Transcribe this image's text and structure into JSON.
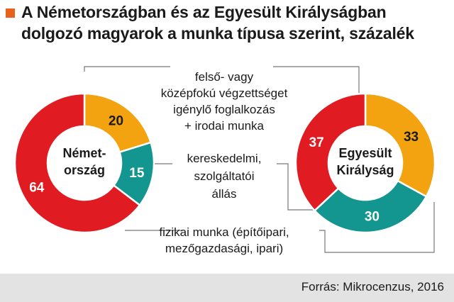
{
  "title_lines": [
    "A Németországban és az Egyesült Királyságban",
    "dolgozó magyarok a munka típusa szerint, százalék"
  ],
  "source": "Forrás: Mikrocenzus, 2016",
  "colors": {
    "orange": "#f2a30f",
    "teal": "#13968f",
    "red": "#e01b22",
    "marker": "#e8621c",
    "leader": "#777777",
    "footer": "#e3e3e3"
  },
  "category_labels": [
    [
      "felső- vagy",
      "középfokú végzettséget",
      "igénylő foglalkozás",
      "+ irodai munka"
    ],
    [
      "kereskedelmi,",
      "szolgáltatói",
      "állás"
    ],
    [
      "fizikai munka (építőipari,",
      "mezőgazdasági, ipari)"
    ]
  ],
  "chart_data": {
    "type": "pie",
    "unit": "százalék",
    "categories": [
      "felső- vagy középfokú végzettséget igénylő foglalkozás + irodai munka",
      "kereskedelmi, szolgáltatói állás",
      "fizikai munka (építőipari, mezőgazdasági, ipari)"
    ],
    "series": [
      {
        "name": "Németország",
        "label_lines": [
          "Német-",
          "ország"
        ],
        "values": [
          20,
          15,
          64
        ]
      },
      {
        "name": "Egyesült Királyság",
        "label_lines": [
          "Egyesült",
          "Királyság"
        ],
        "values": [
          33,
          30,
          37
        ]
      }
    ]
  }
}
